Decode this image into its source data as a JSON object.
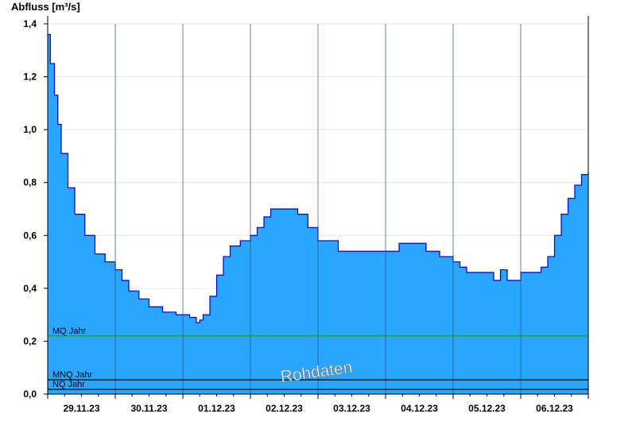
{
  "chart_data": {
    "type": "area",
    "ylabel": "Abfluss [m³/s]",
    "ylim": [
      0,
      1.4
    ],
    "y_ticks": [
      "0,0",
      "0,2",
      "0,4",
      "0,6",
      "0,8",
      "1,0",
      "1,2",
      "1,4"
    ],
    "y_tick_values": [
      0,
      0.2,
      0.4,
      0.6,
      0.8,
      1.0,
      1.2,
      1.4
    ],
    "xlim": [
      0,
      8
    ],
    "x_axis_unit": "days",
    "x_ticks": [
      "29.11.23",
      "30.11.23",
      "01.12.23",
      "02.12.23",
      "03.12.23",
      "04.12.23",
      "05.12.23",
      "06.12.23"
    ],
    "x_tick_positions": [
      0.5,
      1.5,
      2.5,
      3.5,
      4.5,
      5.5,
      6.5,
      7.5
    ],
    "day_dividers": [
      1,
      2,
      3,
      4,
      5,
      6,
      7
    ],
    "grid": true,
    "fill_color": "#29a6ff",
    "line_color": "#0000cc",
    "series": [
      {
        "name": "",
        "x": [
          0,
          0.04,
          0.1,
          0.15,
          0.2,
          0.3,
          0.4,
          0.55,
          0.7,
          0.85,
          1.0,
          1.1,
          1.2,
          1.35,
          1.5,
          1.7,
          1.9,
          2.1,
          2.2,
          2.25,
          2.3,
          2.4,
          2.5,
          2.6,
          2.7,
          2.85,
          3.0,
          3.1,
          3.2,
          3.3,
          3.5,
          3.7,
          3.85,
          4.0,
          4.15,
          4.3,
          4.6,
          4.9,
          5.2,
          5.4,
          5.6,
          5.8,
          6.0,
          6.1,
          6.2,
          6.4,
          6.5,
          6.6,
          6.7,
          6.8,
          6.9,
          7.0,
          7.1,
          7.2,
          7.3,
          7.4,
          7.5,
          7.6,
          7.7,
          7.8,
          7.9,
          8.0
        ],
        "y": [
          1.36,
          1.25,
          1.13,
          1.02,
          0.91,
          0.78,
          0.68,
          0.6,
          0.53,
          0.5,
          0.47,
          0.43,
          0.39,
          0.36,
          0.33,
          0.31,
          0.3,
          0.29,
          0.27,
          0.28,
          0.3,
          0.37,
          0.45,
          0.52,
          0.56,
          0.58,
          0.6,
          0.63,
          0.67,
          0.7,
          0.7,
          0.68,
          0.63,
          0.58,
          0.58,
          0.54,
          0.54,
          0.54,
          0.57,
          0.57,
          0.54,
          0.52,
          0.5,
          0.48,
          0.46,
          0.46,
          0.46,
          0.43,
          0.47,
          0.43,
          0.43,
          0.46,
          0.46,
          0.46,
          0.48,
          0.52,
          0.6,
          0.68,
          0.74,
          0.79,
          0.83,
          0.84
        ]
      }
    ],
    "reference_lines": [
      {
        "label": "MQ Jahr",
        "value": 0.22,
        "color": "#2a8f3a"
      },
      {
        "label": "MNQ Jahr",
        "value": 0.054,
        "color": "#000000"
      },
      {
        "label": "NQ Jahr",
        "value": 0.018,
        "color": "#000000"
      }
    ],
    "watermark": "Rohdaten"
  }
}
